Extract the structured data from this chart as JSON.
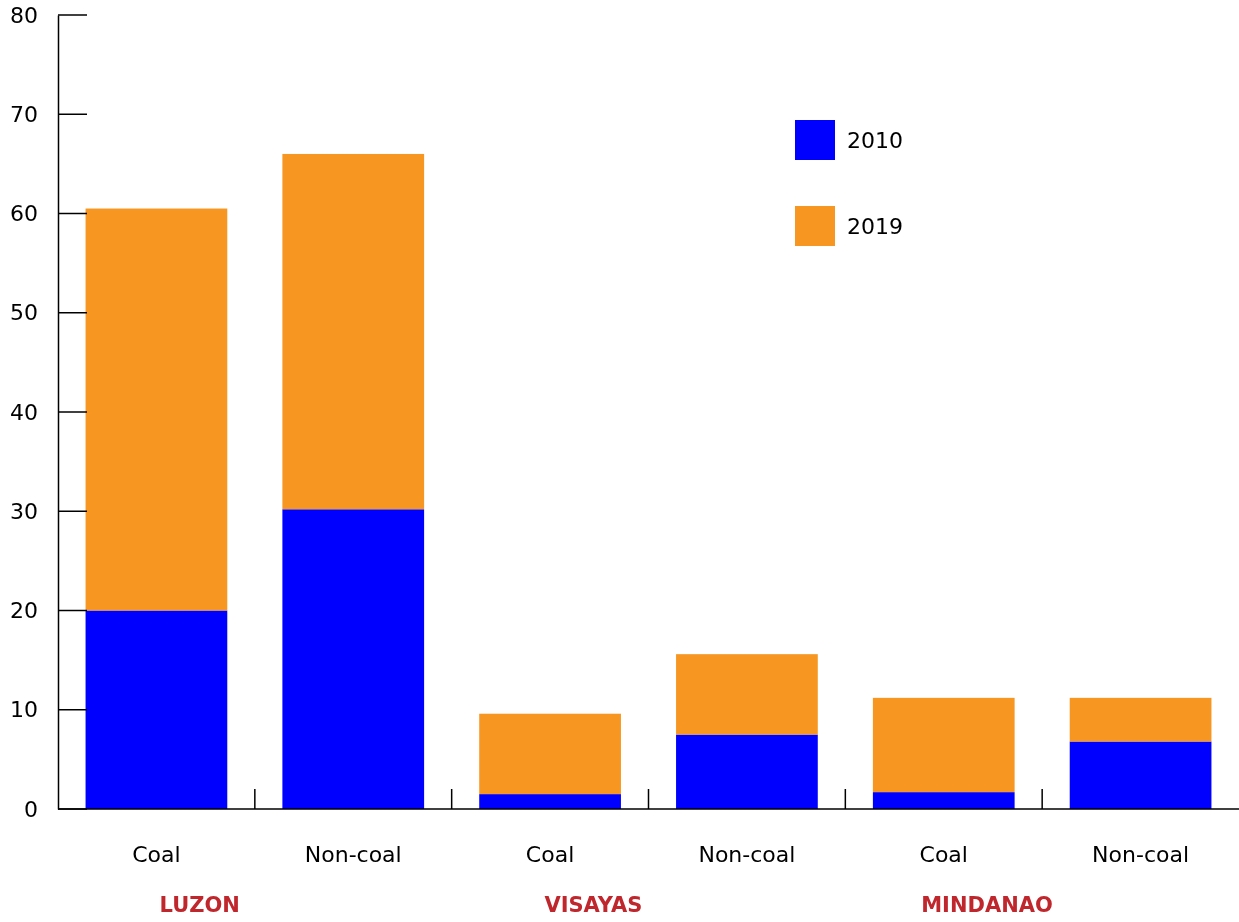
{
  "chart_data": {
    "type": "bar",
    "stacked": true,
    "categories": [
      "Coal",
      "Non-coal",
      "Coal",
      "Non-coal",
      "Coal",
      "Non-coal"
    ],
    "series": [
      {
        "name": "2010",
        "color": "#0000ff",
        "values": [
          20,
          30.2,
          1.5,
          7.5,
          1.7,
          6.8
        ]
      },
      {
        "name": "2019",
        "color": "#f79621",
        "values": [
          40.5,
          35.8,
          8.1,
          8.1,
          9.5,
          4.4
        ]
      }
    ],
    "ylim": [
      0,
      80
    ],
    "yticks": [
      0,
      10,
      20,
      30,
      40,
      50,
      60,
      70,
      80
    ],
    "grid": false,
    "legend": "top right",
    "annotations": [
      "LUZON",
      "VISAYAS",
      "MINDANAO"
    ]
  }
}
